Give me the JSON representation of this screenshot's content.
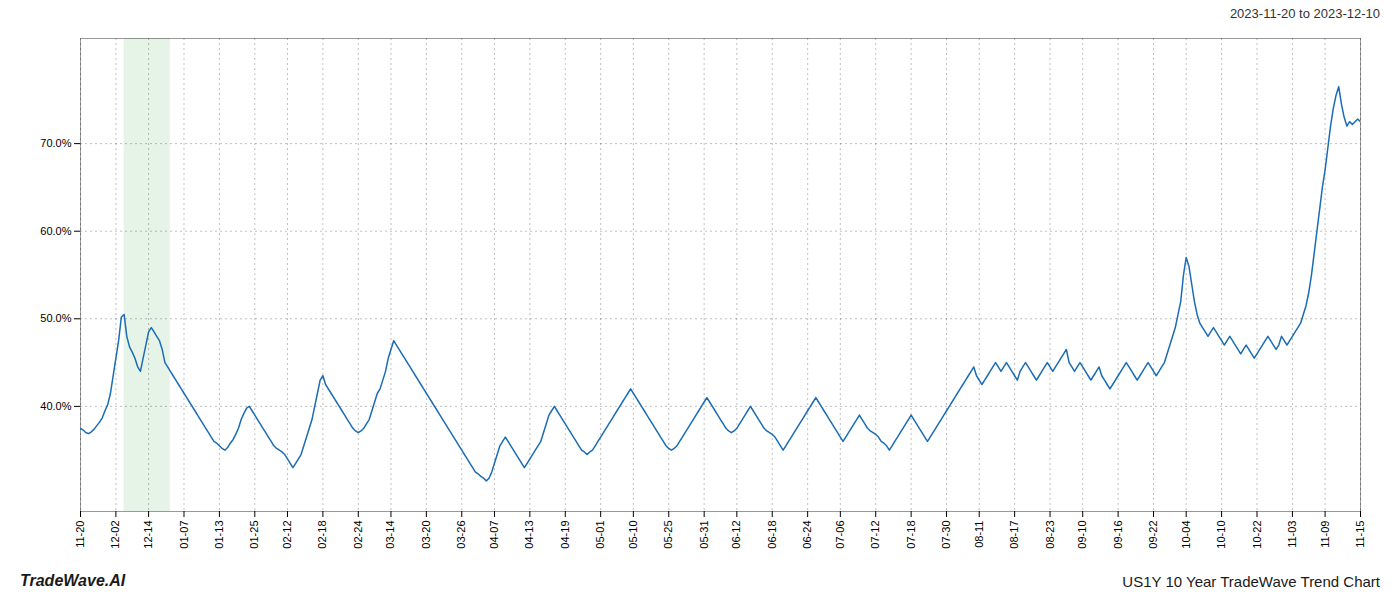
{
  "chart_data": {
    "type": "line",
    "title": "2023-11-20 to 2023-12-10",
    "annotations": [
      "TradeWave.AI",
      "US1Y 10 Year TradeWave Trend Chart"
    ],
    "color": "#1a6cb5",
    "grid": true,
    "ylim": [
      28,
      82
    ],
    "yticks": [
      {
        "value": 40,
        "label": "40.0%"
      },
      {
        "value": 50,
        "label": "50.0%"
      },
      {
        "value": 60,
        "label": "60.0%"
      },
      {
        "value": 70,
        "label": "70.0%"
      }
    ],
    "shade": {
      "start": 16,
      "end": 33,
      "color": "#d6edd8"
    },
    "categories": [
      "11-20",
      null,
      null,
      null,
      null,
      null,
      null,
      null,
      null,
      null,
      null,
      null,
      null,
      "12-02",
      null,
      null,
      null,
      null,
      null,
      null,
      null,
      null,
      null,
      null,
      null,
      "12-14",
      null,
      null,
      null,
      null,
      null,
      null,
      null,
      null,
      null,
      null,
      null,
      null,
      "01-07",
      null,
      null,
      null,
      null,
      null,
      null,
      null,
      null,
      null,
      null,
      null,
      null,
      "01-13",
      null,
      null,
      null,
      null,
      null,
      null,
      null,
      null,
      null,
      null,
      null,
      null,
      "01-25",
      null,
      null,
      null,
      null,
      null,
      null,
      null,
      null,
      null,
      null,
      null,
      "02-12",
      null,
      null,
      null,
      null,
      null,
      null,
      null,
      null,
      null,
      null,
      null,
      null,
      "02-18",
      null,
      null,
      null,
      null,
      null,
      null,
      null,
      null,
      null,
      null,
      null,
      null,
      "02-24",
      null,
      null,
      null,
      null,
      null,
      null,
      null,
      null,
      null,
      null,
      null,
      "03-14",
      null,
      null,
      null,
      null,
      null,
      null,
      null,
      null,
      null,
      null,
      null,
      null,
      "03-20",
      null,
      null,
      null,
      null,
      null,
      null,
      null,
      null,
      null,
      null,
      null,
      null,
      "03-26",
      null,
      null,
      null,
      null,
      null,
      null,
      null,
      null,
      null,
      null,
      null,
      "04-07",
      null,
      null,
      null,
      null,
      null,
      null,
      null,
      null,
      null,
      null,
      null,
      null,
      "04-13",
      null,
      null,
      null,
      null,
      null,
      null,
      null,
      null,
      null,
      null,
      null,
      null,
      "04-19",
      null,
      null,
      null,
      null,
      null,
      null,
      null,
      null,
      null,
      null,
      null,
      null,
      "05-01",
      null,
      null,
      null,
      null,
      null,
      null,
      null,
      null,
      null,
      null,
      null,
      "05-10",
      null,
      null,
      null,
      null,
      null,
      null,
      null,
      null,
      null,
      null,
      null,
      null,
      "05-25",
      null,
      null,
      null,
      null,
      null,
      null,
      null,
      null,
      null,
      null,
      null,
      null,
      "05-31",
      null,
      null,
      null,
      null,
      null,
      null,
      null,
      null,
      null,
      null,
      null,
      "06-12",
      null,
      null,
      null,
      null,
      null,
      null,
      null,
      null,
      null,
      null,
      null,
      null,
      "06-18",
      null,
      null,
      null,
      null,
      null,
      null,
      null,
      null,
      null,
      null,
      null,
      null,
      "06-24",
      null,
      null,
      null,
      null,
      null,
      null,
      null,
      null,
      null,
      null,
      null,
      "07-06",
      null,
      null,
      null,
      null,
      null,
      null,
      null,
      null,
      null,
      null,
      null,
      null,
      "07-12",
      null,
      null,
      null,
      null,
      null,
      null,
      null,
      null,
      null,
      null,
      null,
      null,
      "07-18",
      null,
      null,
      null,
      null,
      null,
      null,
      null,
      null,
      null,
      null,
      null,
      null,
      "07-30",
      null,
      null,
      null,
      null,
      null,
      null,
      null,
      null,
      null,
      null,
      null,
      "08-11",
      null,
      null,
      null,
      null,
      null,
      null,
      null,
      null,
      null,
      null,
      null,
      null,
      "08-17",
      null,
      null,
      null,
      null,
      null,
      null,
      null,
      null,
      null,
      null,
      null,
      null,
      "08-23",
      null,
      null,
      null,
      null,
      null,
      null,
      null,
      null,
      null,
      null,
      null,
      "09-10",
      null,
      null,
      null,
      null,
      null,
      null,
      null,
      null,
      null,
      null,
      null,
      null,
      "09-16",
      null,
      null,
      null,
      null,
      null,
      null,
      null,
      null,
      null,
      null,
      null,
      null,
      "09-22",
      null,
      null,
      null,
      null,
      null,
      null,
      null,
      null,
      null,
      null,
      null,
      "10-04",
      null,
      null,
      null,
      null,
      null,
      null,
      null,
      null,
      null,
      null,
      null,
      null,
      "10-10",
      null,
      null,
      null,
      null,
      null,
      null,
      null,
      null,
      null,
      null,
      null,
      null,
      "10-22",
      null,
      null,
      null,
      null,
      null,
      null,
      null,
      null,
      null,
      null,
      null,
      null,
      "11-03",
      null,
      null,
      null,
      null,
      null,
      null,
      null,
      null,
      null,
      null,
      null,
      "11-09",
      null,
      null,
      null,
      null,
      null,
      null,
      null,
      null,
      null,
      null,
      null,
      null,
      "11-15"
    ],
    "values": [
      37.5,
      37.3,
      37.0,
      36.9,
      37.1,
      37.4,
      37.8,
      38.2,
      38.7,
      39.5,
      40.2,
      41.5,
      43.5,
      45.5,
      47.5,
      50.2,
      50.5,
      48.0,
      46.8,
      46.2,
      45.5,
      44.5,
      44.0,
      45.5,
      47.0,
      48.5,
      49.0,
      48.5,
      48.0,
      47.5,
      46.5,
      45.0,
      44.5,
      44.0,
      43.5,
      43.0,
      42.5,
      42.0,
      41.5,
      41.0,
      40.5,
      40.0,
      39.5,
      39.0,
      38.5,
      38.0,
      37.5,
      37.0,
      36.5,
      36.0,
      35.8,
      35.5,
      35.2,
      35.0,
      35.3,
      35.8,
      36.2,
      36.8,
      37.5,
      38.5,
      39.2,
      39.8,
      40.0,
      39.5,
      39.0,
      38.5,
      38.0,
      37.5,
      37.0,
      36.5,
      36.0,
      35.5,
      35.2,
      35.0,
      34.8,
      34.5,
      34.0,
      33.5,
      33.0,
      33.5,
      34.0,
      34.5,
      35.5,
      36.5,
      37.5,
      38.5,
      40.0,
      41.5,
      43.0,
      43.5,
      42.5,
      42.0,
      41.5,
      41.0,
      40.5,
      40.0,
      39.5,
      39.0,
      38.5,
      38.0,
      37.5,
      37.2,
      37.0,
      37.2,
      37.5,
      38.0,
      38.5,
      39.5,
      40.5,
      41.5,
      42.0,
      43.0,
      44.0,
      45.5,
      46.5,
      47.5,
      47.0,
      46.5,
      46.0,
      45.5,
      45.0,
      44.5,
      44.0,
      43.5,
      43.0,
      42.5,
      42.0,
      41.5,
      41.0,
      40.5,
      40.0,
      39.5,
      39.0,
      38.5,
      38.0,
      37.5,
      37.0,
      36.5,
      36.0,
      35.5,
      35.0,
      34.5,
      34.0,
      33.5,
      33.0,
      32.5,
      32.3,
      32.0,
      31.8,
      31.5,
      31.8,
      32.5,
      33.5,
      34.5,
      35.5,
      36.0,
      36.5,
      36.0,
      35.5,
      35.0,
      34.5,
      34.0,
      33.5,
      33.0,
      33.5,
      34.0,
      34.5,
      35.0,
      35.5,
      36.0,
      37.0,
      38.0,
      39.0,
      39.5,
      40.0,
      39.5,
      39.0,
      38.5,
      38.0,
      37.5,
      37.0,
      36.5,
      36.0,
      35.5,
      35.0,
      34.8,
      34.5,
      34.8,
      35.0,
      35.5,
      36.0,
      36.5,
      37.0,
      37.5,
      38.0,
      38.5,
      39.0,
      39.5,
      40.0,
      40.5,
      41.0,
      41.5,
      42.0,
      41.5,
      41.0,
      40.5,
      40.0,
      39.5,
      39.0,
      38.5,
      38.0,
      37.5,
      37.0,
      36.5,
      36.0,
      35.5,
      35.2,
      35.0,
      35.2,
      35.5,
      36.0,
      36.5,
      37.0,
      37.5,
      38.0,
      38.5,
      39.0,
      39.5,
      40.0,
      40.5,
      41.0,
      40.5,
      40.0,
      39.5,
      39.0,
      38.5,
      38.0,
      37.5,
      37.2,
      37.0,
      37.2,
      37.5,
      38.0,
      38.5,
      39.0,
      39.5,
      40.0,
      39.5,
      39.0,
      38.5,
      38.0,
      37.5,
      37.2,
      37.0,
      36.8,
      36.5,
      36.0,
      35.5,
      35.0,
      35.5,
      36.0,
      36.5,
      37.0,
      37.5,
      38.0,
      38.5,
      39.0,
      39.5,
      40.0,
      40.5,
      41.0,
      40.5,
      40.0,
      39.5,
      39.0,
      38.5,
      38.0,
      37.5,
      37.0,
      36.5,
      36.0,
      36.5,
      37.0,
      37.5,
      38.0,
      38.5,
      39.0,
      38.5,
      38.0,
      37.5,
      37.2,
      37.0,
      36.8,
      36.5,
      36.0,
      35.8,
      35.5,
      35.0,
      35.5,
      36.0,
      36.5,
      37.0,
      37.5,
      38.0,
      38.5,
      39.0,
      38.5,
      38.0,
      37.5,
      37.0,
      36.5,
      36.0,
      36.5,
      37.0,
      37.5,
      38.0,
      38.5,
      39.0,
      39.5,
      40.0,
      40.5,
      41.0,
      41.5,
      42.0,
      42.5,
      43.0,
      43.5,
      44.0,
      44.5,
      43.5,
      43.0,
      42.5,
      43.0,
      43.5,
      44.0,
      44.5,
      45.0,
      44.5,
      44.0,
      44.5,
      45.0,
      44.5,
      44.0,
      43.5,
      43.0,
      44.0,
      44.5,
      45.0,
      44.5,
      44.0,
      43.5,
      43.0,
      43.5,
      44.0,
      44.5,
      45.0,
      44.5,
      44.0,
      44.5,
      45.0,
      45.5,
      46.0,
      46.5,
      45.0,
      44.5,
      44.0,
      44.5,
      45.0,
      44.5,
      44.0,
      43.5,
      43.0,
      43.5,
      44.0,
      44.5,
      43.5,
      43.0,
      42.5,
      42.0,
      42.5,
      43.0,
      43.5,
      44.0,
      44.5,
      45.0,
      44.5,
      44.0,
      43.5,
      43.0,
      43.5,
      44.0,
      44.5,
      45.0,
      44.5,
      44.0,
      43.5,
      44.0,
      44.5,
      45.0,
      46.0,
      47.0,
      48.0,
      49.0,
      50.5,
      52.0,
      55.0,
      57.0,
      56.0,
      54.0,
      52.0,
      50.5,
      49.5,
      49.0,
      48.5,
      48.0,
      48.5,
      49.0,
      48.5,
      48.0,
      47.5,
      47.0,
      47.5,
      48.0,
      47.5,
      47.0,
      46.5,
      46.0,
      46.5,
      47.0,
      46.5,
      46.0,
      45.5,
      46.0,
      46.5,
      47.0,
      47.5,
      48.0,
      47.5,
      47.0,
      46.5,
      47.0,
      48.0,
      47.5,
      47.0,
      47.5,
      48.0,
      48.5,
      49.0,
      49.5,
      50.5,
      51.5,
      53.0,
      55.0,
      57.5,
      60.0,
      62.5,
      65.0,
      67.0,
      69.5,
      72.0,
      74.0,
      75.5,
      76.5,
      74.5,
      73.0,
      72.0,
      72.5,
      72.2,
      72.5,
      72.8,
      72.5
    ]
  }
}
